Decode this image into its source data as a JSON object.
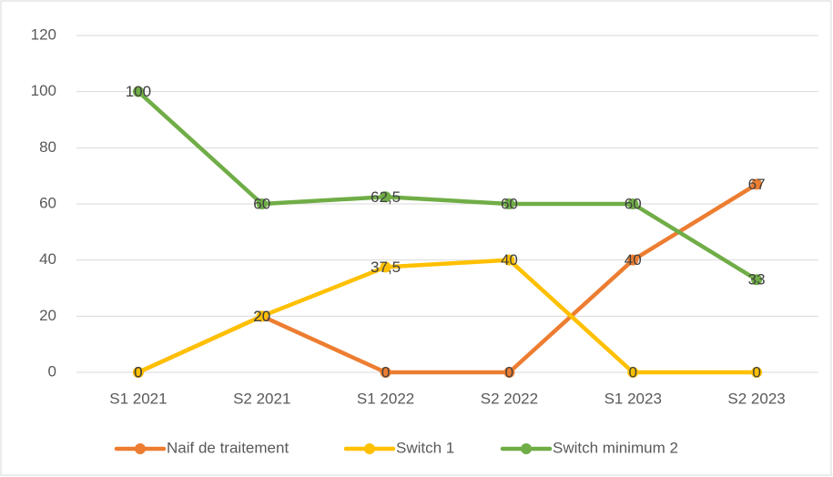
{
  "chart_data": {
    "type": "line",
    "categories": [
      "S1 2021",
      "S2 2021",
      "S1 2022",
      "S2 2022",
      "S1 2023",
      "S2 2023"
    ],
    "series": [
      {
        "name": "Naif de traitement",
        "color": "#ED7D31",
        "values": [
          0,
          20,
          0,
          0,
          40,
          67
        ]
      },
      {
        "name": "Switch 1",
        "color": "#FFC000",
        "values": [
          0,
          20,
          37.5,
          40,
          0,
          0
        ],
        "value_labels": [
          "0",
          "20",
          "37,5",
          "40",
          "0",
          "0"
        ]
      },
      {
        "name": "Switch minimum 2",
        "color": "#70AD47",
        "values": [
          100,
          60,
          62.5,
          60,
          60,
          33
        ],
        "value_labels": [
          "100",
          "60",
          "62,5",
          "60",
          "60",
          "33"
        ]
      }
    ],
    "ylim": [
      0,
      120
    ],
    "yticks": [
      0,
      20,
      40,
      60,
      80,
      100,
      120
    ],
    "grid": true,
    "legend": "bottom"
  }
}
